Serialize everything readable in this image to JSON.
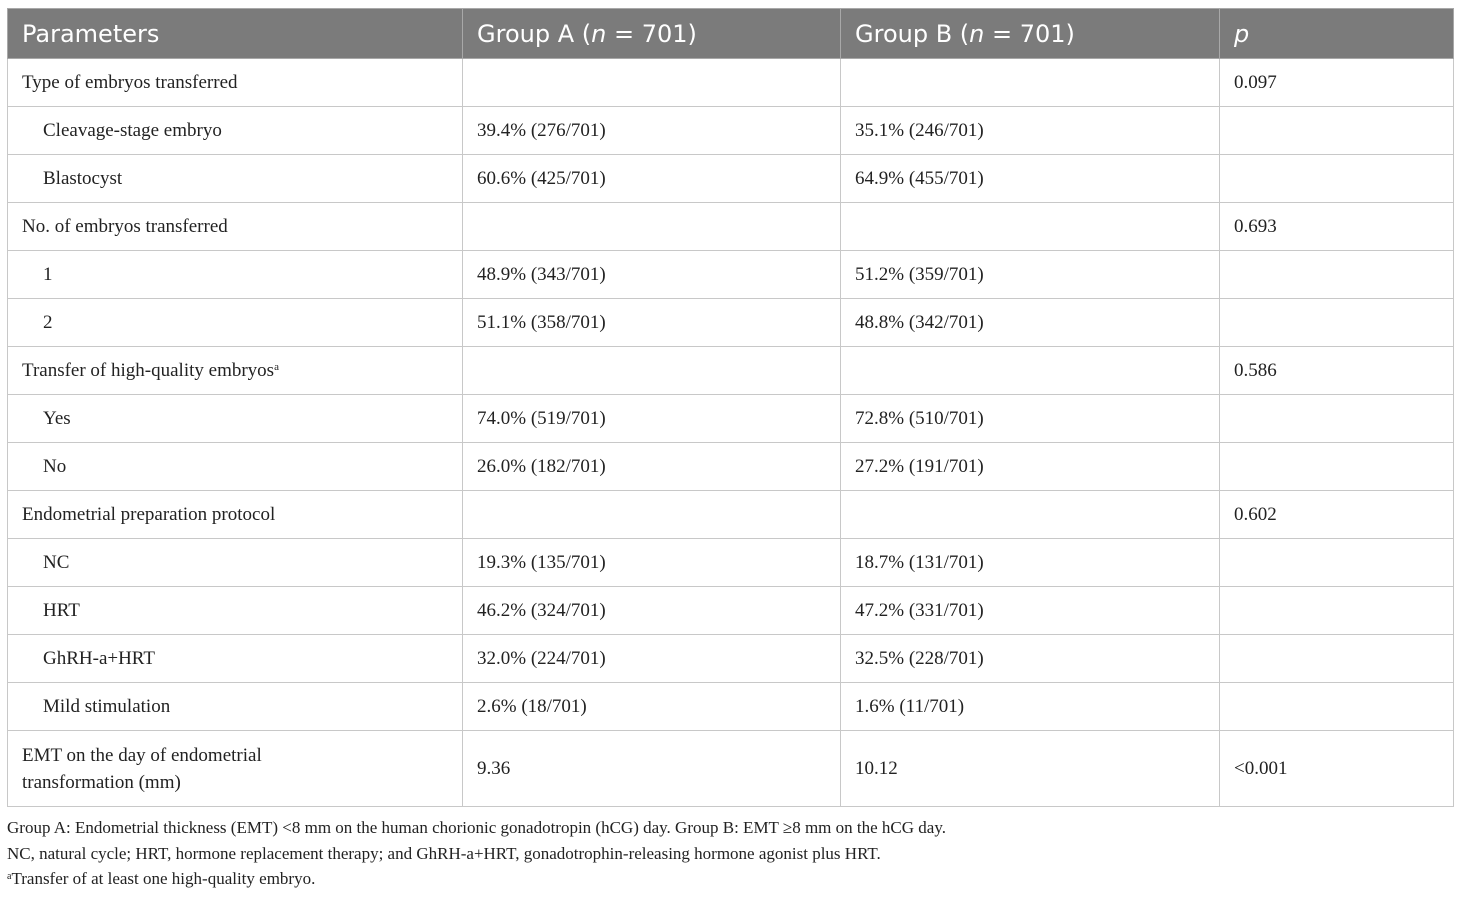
{
  "header": {
    "col1": "Parameters",
    "col2_prefix": "Group A (",
    "col2_n": "n",
    "col2_suffix": " = 701)",
    "col3_prefix": "Group B (",
    "col3_n": "n",
    "col3_suffix": " = 701)",
    "col4": "p"
  },
  "rows": [
    {
      "label": "Type of embryos transferred",
      "a": "",
      "b": "",
      "p": "0.097",
      "sub": false
    },
    {
      "label": "Cleavage-stage embryo",
      "a": "39.4% (276/701)",
      "b": "35.1% (246/701)",
      "p": "",
      "sub": true
    },
    {
      "label": "Blastocyst",
      "a": "60.6% (425/701)",
      "b": "64.9% (455/701)",
      "p": "",
      "sub": true
    },
    {
      "label": "No. of embryos transferred",
      "a": "",
      "b": "",
      "p": "0.693",
      "sub": false
    },
    {
      "label": "1",
      "a": "48.9% (343/701)",
      "b": "51.2% (359/701)",
      "p": "",
      "sub": true
    },
    {
      "label": "2",
      "a": "51.1% (358/701)",
      "b": "48.8% (342/701)",
      "p": "",
      "sub": true
    },
    {
      "label": "Transfer of high-quality embryos",
      "label_sup": "a",
      "a": "",
      "b": "",
      "p": "0.586",
      "sub": false
    },
    {
      "label": "Yes",
      "a": "74.0% (519/701)",
      "b": "72.8% (510/701)",
      "p": "",
      "sub": true
    },
    {
      "label": "No",
      "a": "26.0% (182/701)",
      "b": "27.2% (191/701)",
      "p": "",
      "sub": true
    },
    {
      "label": "Endometrial preparation protocol",
      "a": "",
      "b": "",
      "p": "0.602",
      "sub": false
    },
    {
      "label": "NC",
      "a": "19.3% (135/701)",
      "b": "18.7% (131/701)",
      "p": "",
      "sub": true
    },
    {
      "label": "HRT",
      "a": "46.2% (324/701)",
      "b": "47.2% (331/701)",
      "p": "",
      "sub": true
    },
    {
      "label": "GhRH-a+HRT",
      "a": "32.0% (224/701)",
      "b": "32.5% (228/701)",
      "p": "",
      "sub": true
    },
    {
      "label": "Mild stimulation",
      "a": "2.6% (18/701)",
      "b": "1.6% (11/701)",
      "p": "",
      "sub": true
    },
    {
      "label_line1": "EMT on the day of endometrial",
      "label_line2": "transformation (mm)",
      "a": "9.36",
      "b": "10.12",
      "p": "<0.001",
      "sub": false
    }
  ],
  "notes": {
    "line1": "Group A: Endometrial thickness (EMT) <8 mm on the human chorionic gonadotropin (hCG) day. Group B: EMT ≥8 mm on the hCG day.",
    "line2": "NC, natural cycle; HRT, hormone replacement therapy; and GhRH-a+HRT, gonadotrophin-releasing hormone agonist plus HRT.",
    "line3_sup": "a",
    "line3": "Transfer of at least one high-quality embryo."
  },
  "colors": {
    "header_bg": "#7b7b7b",
    "header_text": "#ffffff",
    "border": "#c8c8c8"
  }
}
